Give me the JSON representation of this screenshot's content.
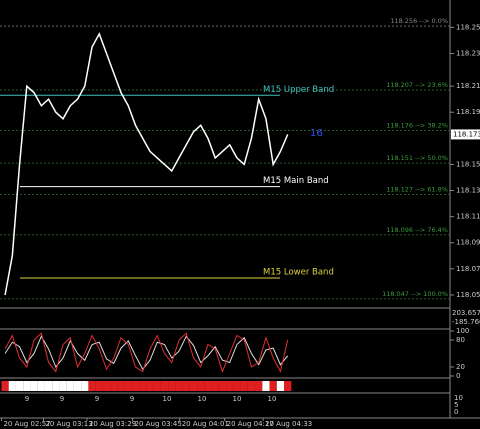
{
  "chart_data": {
    "type": "line",
    "x": [
      0,
      1,
      2,
      3,
      4,
      5,
      6,
      7,
      8,
      9,
      10,
      11,
      12,
      13,
      14,
      15,
      16,
      17,
      18,
      19,
      20,
      21,
      22,
      23,
      24,
      25,
      26,
      27,
      28,
      29,
      30,
      31,
      32,
      33,
      34,
      35,
      36,
      37,
      38,
      39
    ],
    "series": [
      {
        "color": "#ffffff",
        "values": [
          118.05,
          118.08,
          118.15,
          118.21,
          118.205,
          118.195,
          118.2,
          118.19,
          118.185,
          118.195,
          118.2,
          118.21,
          118.24,
          118.25,
          118.235,
          118.22,
          118.205,
          118.195,
          118.18,
          118.17,
          118.16,
          118.155,
          118.15,
          118.145,
          118.155,
          118.165,
          118.175,
          118.18,
          118.17,
          118.155,
          118.16,
          118.165,
          118.155,
          118.15,
          118.17,
          118.2,
          118.185,
          118.15,
          118.16,
          118.173
        ]
      }
    ],
    "xlim": [
      -0.7,
      61.4
    ],
    "xticks": [
      {
        "value": -0.5,
        "label": "20 Aug 02:57"
      },
      {
        "value": 5.3,
        "label": "20 Aug 03:13"
      },
      {
        "value": 11.3,
        "label": "20 Aug 03:29"
      },
      {
        "value": 17.6,
        "label": "20 Aug 03:45"
      },
      {
        "value": 24.1,
        "label": "20 Aug 04:01"
      },
      {
        "value": 30.3,
        "label": "20 Aug 04:17"
      },
      {
        "value": 35.6,
        "label": "20 Aug 04:33"
      }
    ],
    "ylim": [
      118.04,
      118.276
    ],
    "yticks": [
      118.255,
      118.235,
      {
        "value": 118.21,
        "label": "118.210"
      },
      {
        "value": 118.19,
        "label": "118.190"
      },
      {
        "value": 118.15,
        "label": "118.150"
      },
      {
        "value": 118.13,
        "label": "118.130"
      },
      {
        "value": 118.11,
        "label": "118.110"
      },
      {
        "value": 118.09,
        "label": "118.090"
      },
      {
        "value": 118.07,
        "label": "118.070"
      },
      {
        "value": 118.05,
        "label": "118.050"
      }
    ],
    "current_price": 118.173,
    "fib_levels": [
      {
        "value": 118.256,
        "label": "118.256 --> 0.0%"
      },
      {
        "value": 118.207,
        "label": "118.207 --> 23.6%"
      },
      {
        "value": 118.176,
        "label": "118.176 --> 38.2%"
      },
      {
        "value": 118.151,
        "label": "118.151 --> 50.0%"
      },
      {
        "value": 118.127,
        "label": "118.127 --> 61.8%"
      },
      {
        "value": 118.096,
        "label": "118.096 --> 76.4%"
      },
      {
        "value": 118.047,
        "label": "118.047 --> 100.0%"
      }
    ],
    "bands": [
      {
        "name": "M15 Upper Band",
        "value": 118.203,
        "color": "#40c0c0"
      },
      {
        "name": "M15 Main Band",
        "value": 118.133,
        "color": "#ffffff"
      },
      {
        "name": "M15 Lower Band",
        "value": 118.063,
        "color": "#e0d040"
      }
    ],
    "annotation": "16",
    "cci_labels": [
      "203.657",
      "-185.7603"
    ],
    "stoch": {
      "ylim": [
        0,
        100
      ],
      "yticks": [
        100,
        80,
        20,
        0
      ],
      "main": [
        60,
        90,
        40,
        20,
        80,
        95,
        30,
        10,
        70,
        85,
        20,
        50,
        90,
        60,
        15,
        40,
        85,
        70,
        20,
        10,
        60,
        90,
        50,
        30,
        80,
        95,
        40,
        20,
        70,
        60,
        10,
        50,
        90,
        80,
        20,
        30,
        85,
        40,
        10,
        80
      ],
      "signal": [
        50,
        75,
        65,
        30,
        50,
        88,
        60,
        20,
        40,
        78,
        50,
        35,
        70,
        75,
        38,
        28,
        62,
        78,
        45,
        15,
        35,
        75,
        70,
        40,
        55,
        88,
        68,
        30,
        45,
        65,
        35,
        30,
        70,
        85,
        50,
        25,
        58,
        62,
        25,
        45
      ]
    },
    "trend_strip": [
      1,
      0,
      0,
      0,
      0,
      0,
      0,
      0,
      0,
      0,
      0,
      0,
      1,
      1,
      1,
      1,
      1,
      1,
      1,
      1,
      1,
      1,
      1,
      1,
      1,
      1,
      1,
      1,
      1,
      1,
      1,
      1,
      1,
      1,
      1,
      1,
      0,
      1,
      0,
      1
    ],
    "bar_labels": [
      "9",
      "9",
      "9",
      "9",
      "10",
      "10",
      "10",
      "10"
    ],
    "volume_labels": [
      "10",
      "5",
      "0"
    ]
  }
}
